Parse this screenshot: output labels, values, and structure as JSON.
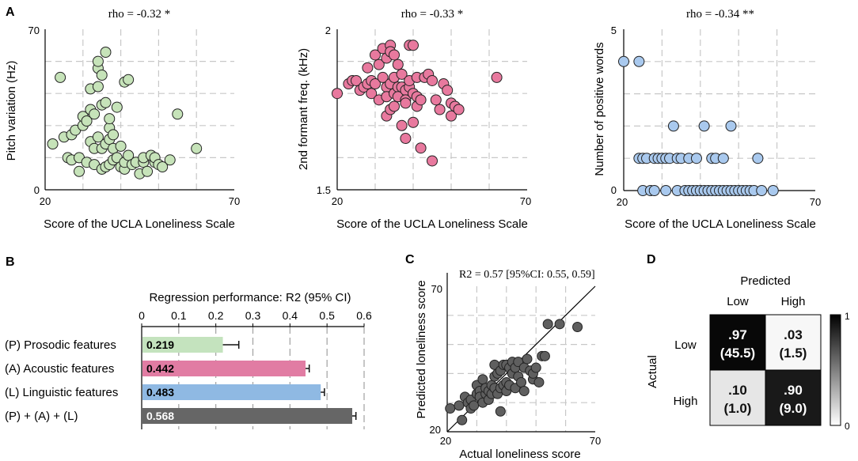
{
  "panel_labels": [
    "A",
    "B",
    "C",
    "D"
  ],
  "colors": {
    "scatter1": "#c6e3b9",
    "scatter2": "#e8799e",
    "scatter3": "#a9c9ee",
    "scatterC": "#5f5f5f",
    "barP": "#c4e3be",
    "barA": "#e17ca3",
    "barL": "#8fb9e3",
    "barAll": "#666666",
    "grid": "#c8c8c8"
  },
  "chart_data": [
    {
      "id": "A1",
      "type": "scatter",
      "title": "rho = -0.32 *",
      "xlabel": "Score of the UCLA Loneliness Scale",
      "ylabel": "Pitch variation (Hz)",
      "xlim": [
        20,
        70
      ],
      "ylim": [
        0,
        70
      ],
      "xticks": [
        "20",
        "70"
      ],
      "yticks": [
        "0",
        "70"
      ],
      "points": [
        [
          22,
          20
        ],
        [
          24,
          49
        ],
        [
          25,
          23
        ],
        [
          26,
          14
        ],
        [
          27,
          13
        ],
        [
          27,
          24
        ],
        [
          28,
          26
        ],
        [
          29,
          8
        ],
        [
          29,
          14
        ],
        [
          30,
          28
        ],
        [
          30,
          32
        ],
        [
          31,
          12
        ],
        [
          31,
          30
        ],
        [
          32,
          21
        ],
        [
          32,
          35
        ],
        [
          32,
          44
        ],
        [
          33,
          11
        ],
        [
          33,
          18
        ],
        [
          33,
          33
        ],
        [
          34,
          23
        ],
        [
          34,
          45
        ],
        [
          34,
          53
        ],
        [
          34,
          56
        ],
        [
          35,
          9
        ],
        [
          35,
          18
        ],
        [
          35,
          37
        ],
        [
          35,
          50
        ],
        [
          36,
          10
        ],
        [
          36,
          20
        ],
        [
          36,
          38
        ],
        [
          36,
          60
        ],
        [
          37,
          11
        ],
        [
          37,
          22
        ],
        [
          37,
          27
        ],
        [
          37,
          31
        ],
        [
          38,
          13
        ],
        [
          38,
          18
        ],
        [
          38,
          24
        ],
        [
          39,
          14
        ],
        [
          39,
          36
        ],
        [
          40,
          10
        ],
        [
          40,
          19
        ],
        [
          41,
          9
        ],
        [
          41,
          12
        ],
        [
          41,
          47
        ],
        [
          42,
          15
        ],
        [
          42,
          48
        ],
        [
          43,
          11
        ],
        [
          44,
          12
        ],
        [
          45,
          7
        ],
        [
          46,
          12
        ],
        [
          46,
          14
        ],
        [
          47,
          8
        ],
        [
          48,
          15
        ],
        [
          49,
          12
        ],
        [
          49,
          14
        ],
        [
          50,
          11
        ],
        [
          51,
          10
        ],
        [
          53,
          13
        ],
        [
          55,
          33
        ],
        [
          60,
          18
        ]
      ]
    },
    {
      "id": "A2",
      "type": "scatter",
      "title": "rho = -0.33 *",
      "xlabel": "Score of the UCLA Loneliness Scale",
      "ylabel": "2nd formant freq. (kHz)",
      "xlim": [
        20,
        70
      ],
      "ylim": [
        1.5,
        2
      ],
      "xticks": [
        "20",
        "70"
      ],
      "yticks": [
        "1.5",
        "2"
      ],
      "points": [
        [
          20,
          1.8
        ],
        [
          23,
          1.83
        ],
        [
          24,
          1.84
        ],
        [
          25,
          1.84
        ],
        [
          26,
          1.81
        ],
        [
          27,
          1.82
        ],
        [
          28,
          1.88
        ],
        [
          28,
          1.83
        ],
        [
          29,
          1.84
        ],
        [
          29,
          1.8
        ],
        [
          30,
          1.83
        ],
        [
          30,
          1.92
        ],
        [
          31,
          1.78
        ],
        [
          31,
          1.89
        ],
        [
          32,
          1.94
        ],
        [
          32,
          1.85
        ],
        [
          33,
          1.82
        ],
        [
          33,
          1.73
        ],
        [
          33,
          1.79
        ],
        [
          33,
          1.91
        ],
        [
          34,
          1.95
        ],
        [
          34,
          1.83
        ],
        [
          34,
          1.75
        ],
        [
          34,
          1.93
        ],
        [
          35,
          1.76
        ],
        [
          35,
          1.8
        ],
        [
          35,
          1.85
        ],
        [
          35,
          1.92
        ],
        [
          36,
          1.82
        ],
        [
          36,
          1.79
        ],
        [
          36,
          1.89
        ],
        [
          37,
          1.86
        ],
        [
          37,
          1.82
        ],
        [
          37,
          1.7
        ],
        [
          38,
          1.81
        ],
        [
          38,
          1.78
        ],
        [
          38,
          1.77
        ],
        [
          38,
          1.66
        ],
        [
          39,
          1.82
        ],
        [
          39,
          1.95
        ],
        [
          39,
          1.84
        ],
        [
          40,
          1.8
        ],
        [
          40,
          1.71
        ],
        [
          40,
          1.95
        ],
        [
          41,
          1.79
        ],
        [
          41,
          1.85
        ],
        [
          41,
          1.76
        ],
        [
          42,
          1.78
        ],
        [
          42,
          1.63
        ],
        [
          43,
          1.85
        ],
        [
          44,
          1.86
        ],
        [
          45,
          1.84
        ],
        [
          46,
          1.78
        ],
        [
          47,
          1.75
        ],
        [
          48,
          1.83
        ],
        [
          49,
          1.81
        ],
        [
          50,
          1.77
        ],
        [
          50,
          1.73
        ],
        [
          51,
          1.76
        ],
        [
          52,
          1.75
        ],
        [
          62,
          1.85
        ],
        [
          45,
          1.59
        ]
      ]
    },
    {
      "id": "A3",
      "type": "scatter",
      "title": "rho = -0.34 **",
      "xlabel": "Score of the UCLA Loneliness Scale",
      "ylabel": "Number of positive words",
      "xlim": [
        20,
        70
      ],
      "ylim": [
        0,
        5
      ],
      "xticks": [
        "20",
        "70"
      ],
      "yticks": [
        "0",
        "5"
      ],
      "points": [
        [
          20,
          4
        ],
        [
          24,
          4
        ],
        [
          24,
          1
        ],
        [
          25,
          0
        ],
        [
          25,
          1
        ],
        [
          26,
          1
        ],
        [
          27,
          0
        ],
        [
          28,
          1
        ],
        [
          28,
          0
        ],
        [
          29,
          1
        ],
        [
          30,
          1
        ],
        [
          31,
          0
        ],
        [
          31,
          1
        ],
        [
          32,
          1
        ],
        [
          33,
          2
        ],
        [
          34,
          1
        ],
        [
          34,
          0
        ],
        [
          35,
          1
        ],
        [
          36,
          0
        ],
        [
          37,
          0
        ],
        [
          37,
          1
        ],
        [
          38,
          0
        ],
        [
          39,
          1
        ],
        [
          39,
          0
        ],
        [
          40,
          0
        ],
        [
          41,
          0
        ],
        [
          41,
          2
        ],
        [
          42,
          0
        ],
        [
          43,
          0
        ],
        [
          43,
          1
        ],
        [
          44,
          0
        ],
        [
          44,
          1
        ],
        [
          45,
          0
        ],
        [
          46,
          0
        ],
        [
          46,
          1
        ],
        [
          47,
          0
        ],
        [
          48,
          2
        ],
        [
          48,
          0
        ],
        [
          49,
          0
        ],
        [
          50,
          0
        ],
        [
          51,
          0
        ],
        [
          52,
          0
        ],
        [
          53,
          0
        ],
        [
          54,
          0
        ],
        [
          55,
          1
        ],
        [
          56,
          0
        ],
        [
          59,
          0
        ]
      ]
    },
    {
      "id": "B",
      "type": "bar",
      "orientation": "horizontal",
      "title": "Regression performance: R2 (95% CI)",
      "xlim": [
        0,
        0.6
      ],
      "xticks": [
        "0",
        "0.1",
        "0.2",
        "0.3",
        "0.4",
        "0.5",
        "0.6"
      ],
      "categories": [
        "(P) Prosodic features",
        "(A) Acoustic features",
        "(L) Linguistic features",
        "(P) + (A) + (L)"
      ],
      "values": [
        0.219,
        0.442,
        0.483,
        0.568
      ],
      "labels": [
        "0.219",
        "0.442",
        "0.483",
        "0.568"
      ],
      "ci_upper": [
        0.262,
        0.452,
        0.493,
        0.578
      ]
    },
    {
      "id": "C",
      "type": "scatter",
      "annotation": "R2 = 0.57 [95%CI: 0.55, 0.59]",
      "xlabel": "Actual loneliness score",
      "ylabel": "Predicted loneliness score",
      "xlim": [
        20,
        70
      ],
      "ylim": [
        20,
        70
      ],
      "xticks": [
        "20",
        "70"
      ],
      "yticks": [
        "20",
        "70"
      ],
      "identity_line": true,
      "points": [
        [
          21,
          28
        ],
        [
          24,
          29
        ],
        [
          25,
          24
        ],
        [
          26,
          32
        ],
        [
          27,
          30
        ],
        [
          28,
          31
        ],
        [
          28,
          28
        ],
        [
          29,
          29
        ],
        [
          30,
          33
        ],
        [
          30,
          36
        ],
        [
          31,
          34
        ],
        [
          31,
          32
        ],
        [
          32,
          30
        ],
        [
          32,
          38
        ],
        [
          33,
          33
        ],
        [
          33,
          35
        ],
        [
          34,
          34
        ],
        [
          34,
          31
        ],
        [
          35,
          36
        ],
        [
          35,
          33
        ],
        [
          36,
          35
        ],
        [
          36,
          39
        ],
        [
          36,
          43
        ],
        [
          37,
          40
        ],
        [
          37,
          33
        ],
        [
          38,
          35
        ],
        [
          38,
          41
        ],
        [
          39,
          36
        ],
        [
          39,
          43
        ],
        [
          40,
          34
        ],
        [
          40,
          37
        ],
        [
          40,
          43
        ],
        [
          41,
          42
        ],
        [
          41,
          36
        ],
        [
          42,
          40
        ],
        [
          42,
          44
        ],
        [
          43,
          35
        ],
        [
          43,
          42
        ],
        [
          44,
          39
        ],
        [
          44,
          44
        ],
        [
          45,
          37
        ],
        [
          46,
          34
        ],
        [
          46,
          42
        ],
        [
          47,
          45
        ],
        [
          48,
          41
        ],
        [
          49,
          38
        ],
        [
          49,
          40
        ],
        [
          50,
          42
        ],
        [
          51,
          37
        ],
        [
          52,
          46
        ],
        [
          53,
          46
        ],
        [
          54,
          57
        ],
        [
          58,
          57
        ],
        [
          64,
          56
        ],
        [
          38,
          27
        ]
      ]
    },
    {
      "id": "D",
      "type": "heatmap",
      "top_label": "Predicted",
      "side_label": "Actual",
      "col_labels": [
        "Low",
        "High"
      ],
      "row_labels": [
        "Low",
        "High"
      ],
      "cells": [
        [
          {
            "prop": ".97",
            "count": "(45.5)",
            "shade": 0.97
          },
          {
            "prop": ".03",
            "count": "(1.5)",
            "shade": 0.03
          }
        ],
        [
          {
            "prop": ".10",
            "count": "(1.0)",
            "shade": 0.1
          },
          {
            "prop": ".90",
            "count": "(9.0)",
            "shade": 0.9
          }
        ]
      ],
      "colorbar_ticks": [
        "1",
        "0"
      ]
    }
  ]
}
